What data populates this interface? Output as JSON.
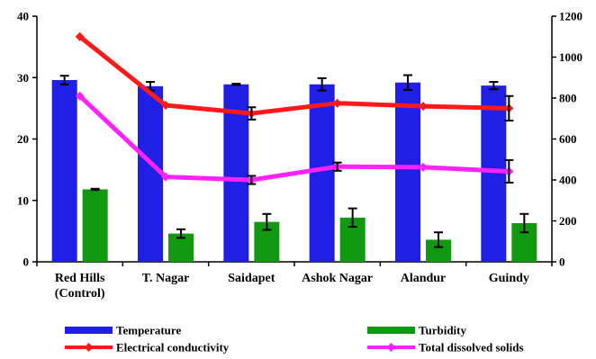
{
  "chart_data": {
    "type": "bar",
    "categories": [
      [
        "Red Hills",
        "(Control)"
      ],
      [
        "T. Nagar"
      ],
      [
        "Saidapet"
      ],
      [
        "Ashok Nagar"
      ],
      [
        "Alandur"
      ],
      [
        "Guindy"
      ]
    ],
    "left_axis": {
      "ylim": [
        0,
        40
      ],
      "ticks": [
        "0",
        "10",
        "20",
        "30",
        "40"
      ]
    },
    "right_axis": {
      "ylim": [
        0,
        1200
      ],
      "ticks": [
        "0",
        "200",
        "400",
        "600",
        "800",
        "1000",
        "1200"
      ]
    },
    "bar_series": [
      {
        "name": "Temperature",
        "color": "#1f1fe6",
        "values": [
          29.6,
          28.6,
          28.9,
          28.9,
          29.2,
          28.7
        ],
        "errors": [
          0.7,
          0.7,
          0.1,
          1.0,
          1.2,
          0.6
        ]
      },
      {
        "name": "Turbidity",
        "color": "#119911",
        "values": [
          11.8,
          4.6,
          6.5,
          7.2,
          3.6,
          6.3
        ],
        "errors": [
          0.1,
          0.7,
          1.3,
          1.5,
          1.2,
          1.5
        ]
      }
    ],
    "line_series": [
      {
        "name": "Electrical conductivity",
        "color": "#ff1a1a",
        "values": [
          1100,
          765,
          725,
          775,
          760,
          750
        ],
        "errors": [
          0,
          0,
          30,
          0,
          0,
          60
        ]
      },
      {
        "name": "Total dissolved solids",
        "color": "#ff22ff",
        "values": [
          810,
          415,
          400,
          465,
          462,
          442
        ],
        "errors": [
          0,
          0,
          20,
          20,
          0,
          55
        ]
      }
    ],
    "legend_placement": "bottom",
    "legend": [
      {
        "name": "Temperature",
        "kind": "bar",
        "color": "#1f1fe6"
      },
      {
        "name": "Turbidity",
        "kind": "bar",
        "color": "#119911"
      },
      {
        "name": "Electrical conductivity",
        "kind": "line",
        "color": "#ff1a1a"
      },
      {
        "name": "Total dissolved solids",
        "kind": "line",
        "color": "#ff22ff"
      }
    ]
  }
}
